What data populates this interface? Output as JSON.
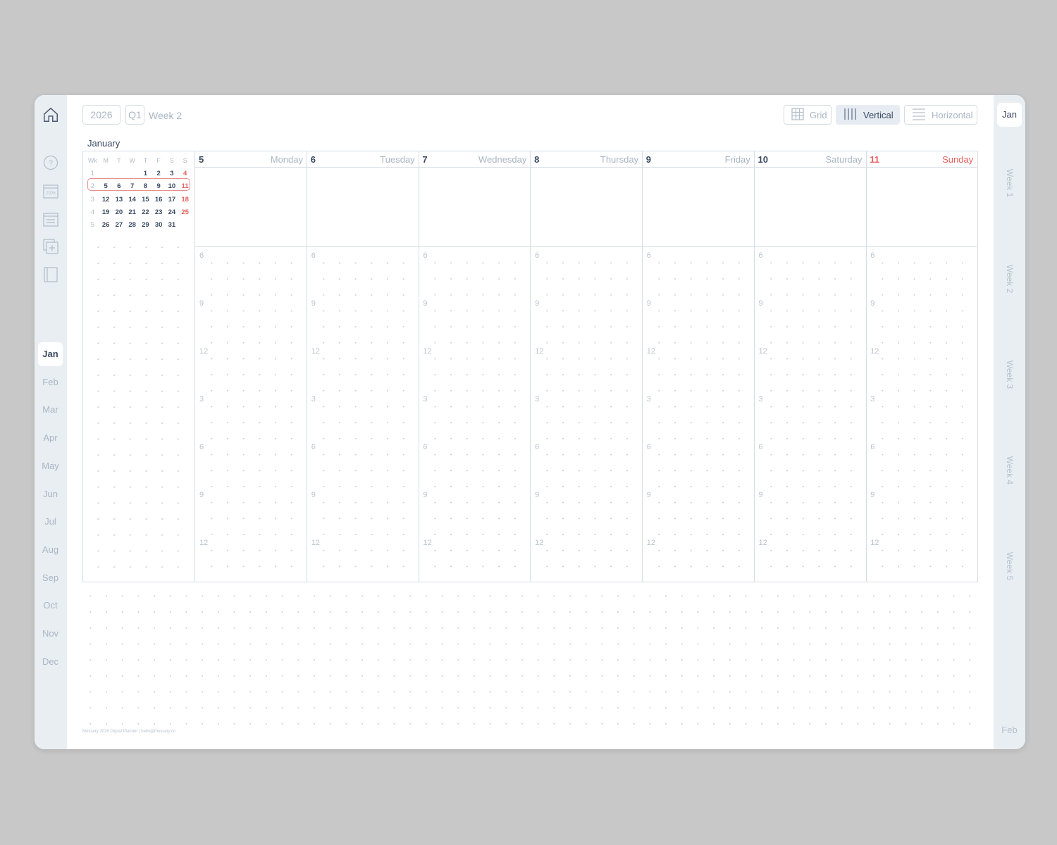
{
  "header": {
    "year": "2026",
    "quarter": "Q1",
    "week": "Week 2"
  },
  "views": [
    {
      "label": "Grid",
      "icon": "grid-icon"
    },
    {
      "label": "Vertical",
      "icon": "vertical-columns-icon",
      "active": true
    },
    {
      "label": "Horizontal",
      "icon": "horizontal-lines-icon"
    }
  ],
  "sidebar": {
    "icons": [
      "home-icon",
      "help-icon",
      "year-calendar-icon",
      "month-calendar-icon",
      "add-page-icon",
      "notebook-icon"
    ],
    "year_icon_text": "2026",
    "months": [
      "Jan",
      "Feb",
      "Mar",
      "Apr",
      "May",
      "Jun",
      "Jul",
      "Aug",
      "Sep",
      "Oct",
      "Nov",
      "Dec"
    ],
    "active_month": "Jan"
  },
  "right_sidebar": {
    "month": "Jan",
    "weeks": [
      "Week 1",
      "Week 2",
      "Week 3",
      "Week 4",
      "Week 5"
    ],
    "next": "Feb"
  },
  "mini_calendar": {
    "title": "January",
    "headers": [
      "Wk",
      "M",
      "T",
      "W",
      "T",
      "F",
      "S",
      "S"
    ],
    "rows": [
      [
        "1",
        "",
        "",
        "",
        "1",
        "2",
        "3",
        "4"
      ],
      [
        "2",
        "5",
        "6",
        "7",
        "8",
        "9",
        "10",
        "11"
      ],
      [
        "3",
        "12",
        "13",
        "14",
        "15",
        "16",
        "17",
        "18"
      ],
      [
        "4",
        "19",
        "20",
        "21",
        "22",
        "23",
        "24",
        "25"
      ],
      [
        "5",
        "26",
        "27",
        "28",
        "29",
        "30",
        "31",
        ""
      ]
    ],
    "current_week": "2"
  },
  "days": [
    {
      "num": "5",
      "name": "Monday"
    },
    {
      "num": "6",
      "name": "Tuesday"
    },
    {
      "num": "7",
      "name": "Wednesday"
    },
    {
      "num": "8",
      "name": "Thursday"
    },
    {
      "num": "9",
      "name": "Friday"
    },
    {
      "num": "10",
      "name": "Saturday"
    },
    {
      "num": "11",
      "name": "Sunday"
    }
  ],
  "hours": [
    "6",
    "9",
    "12",
    "3",
    "6",
    "9",
    "12"
  ],
  "footer": "Mossery 2026 Digital Planner | hello@mossery.co",
  "colors": {
    "accent": "#3b4a62",
    "sunday": "#e8605e",
    "sidebar": "#e9eef3"
  }
}
